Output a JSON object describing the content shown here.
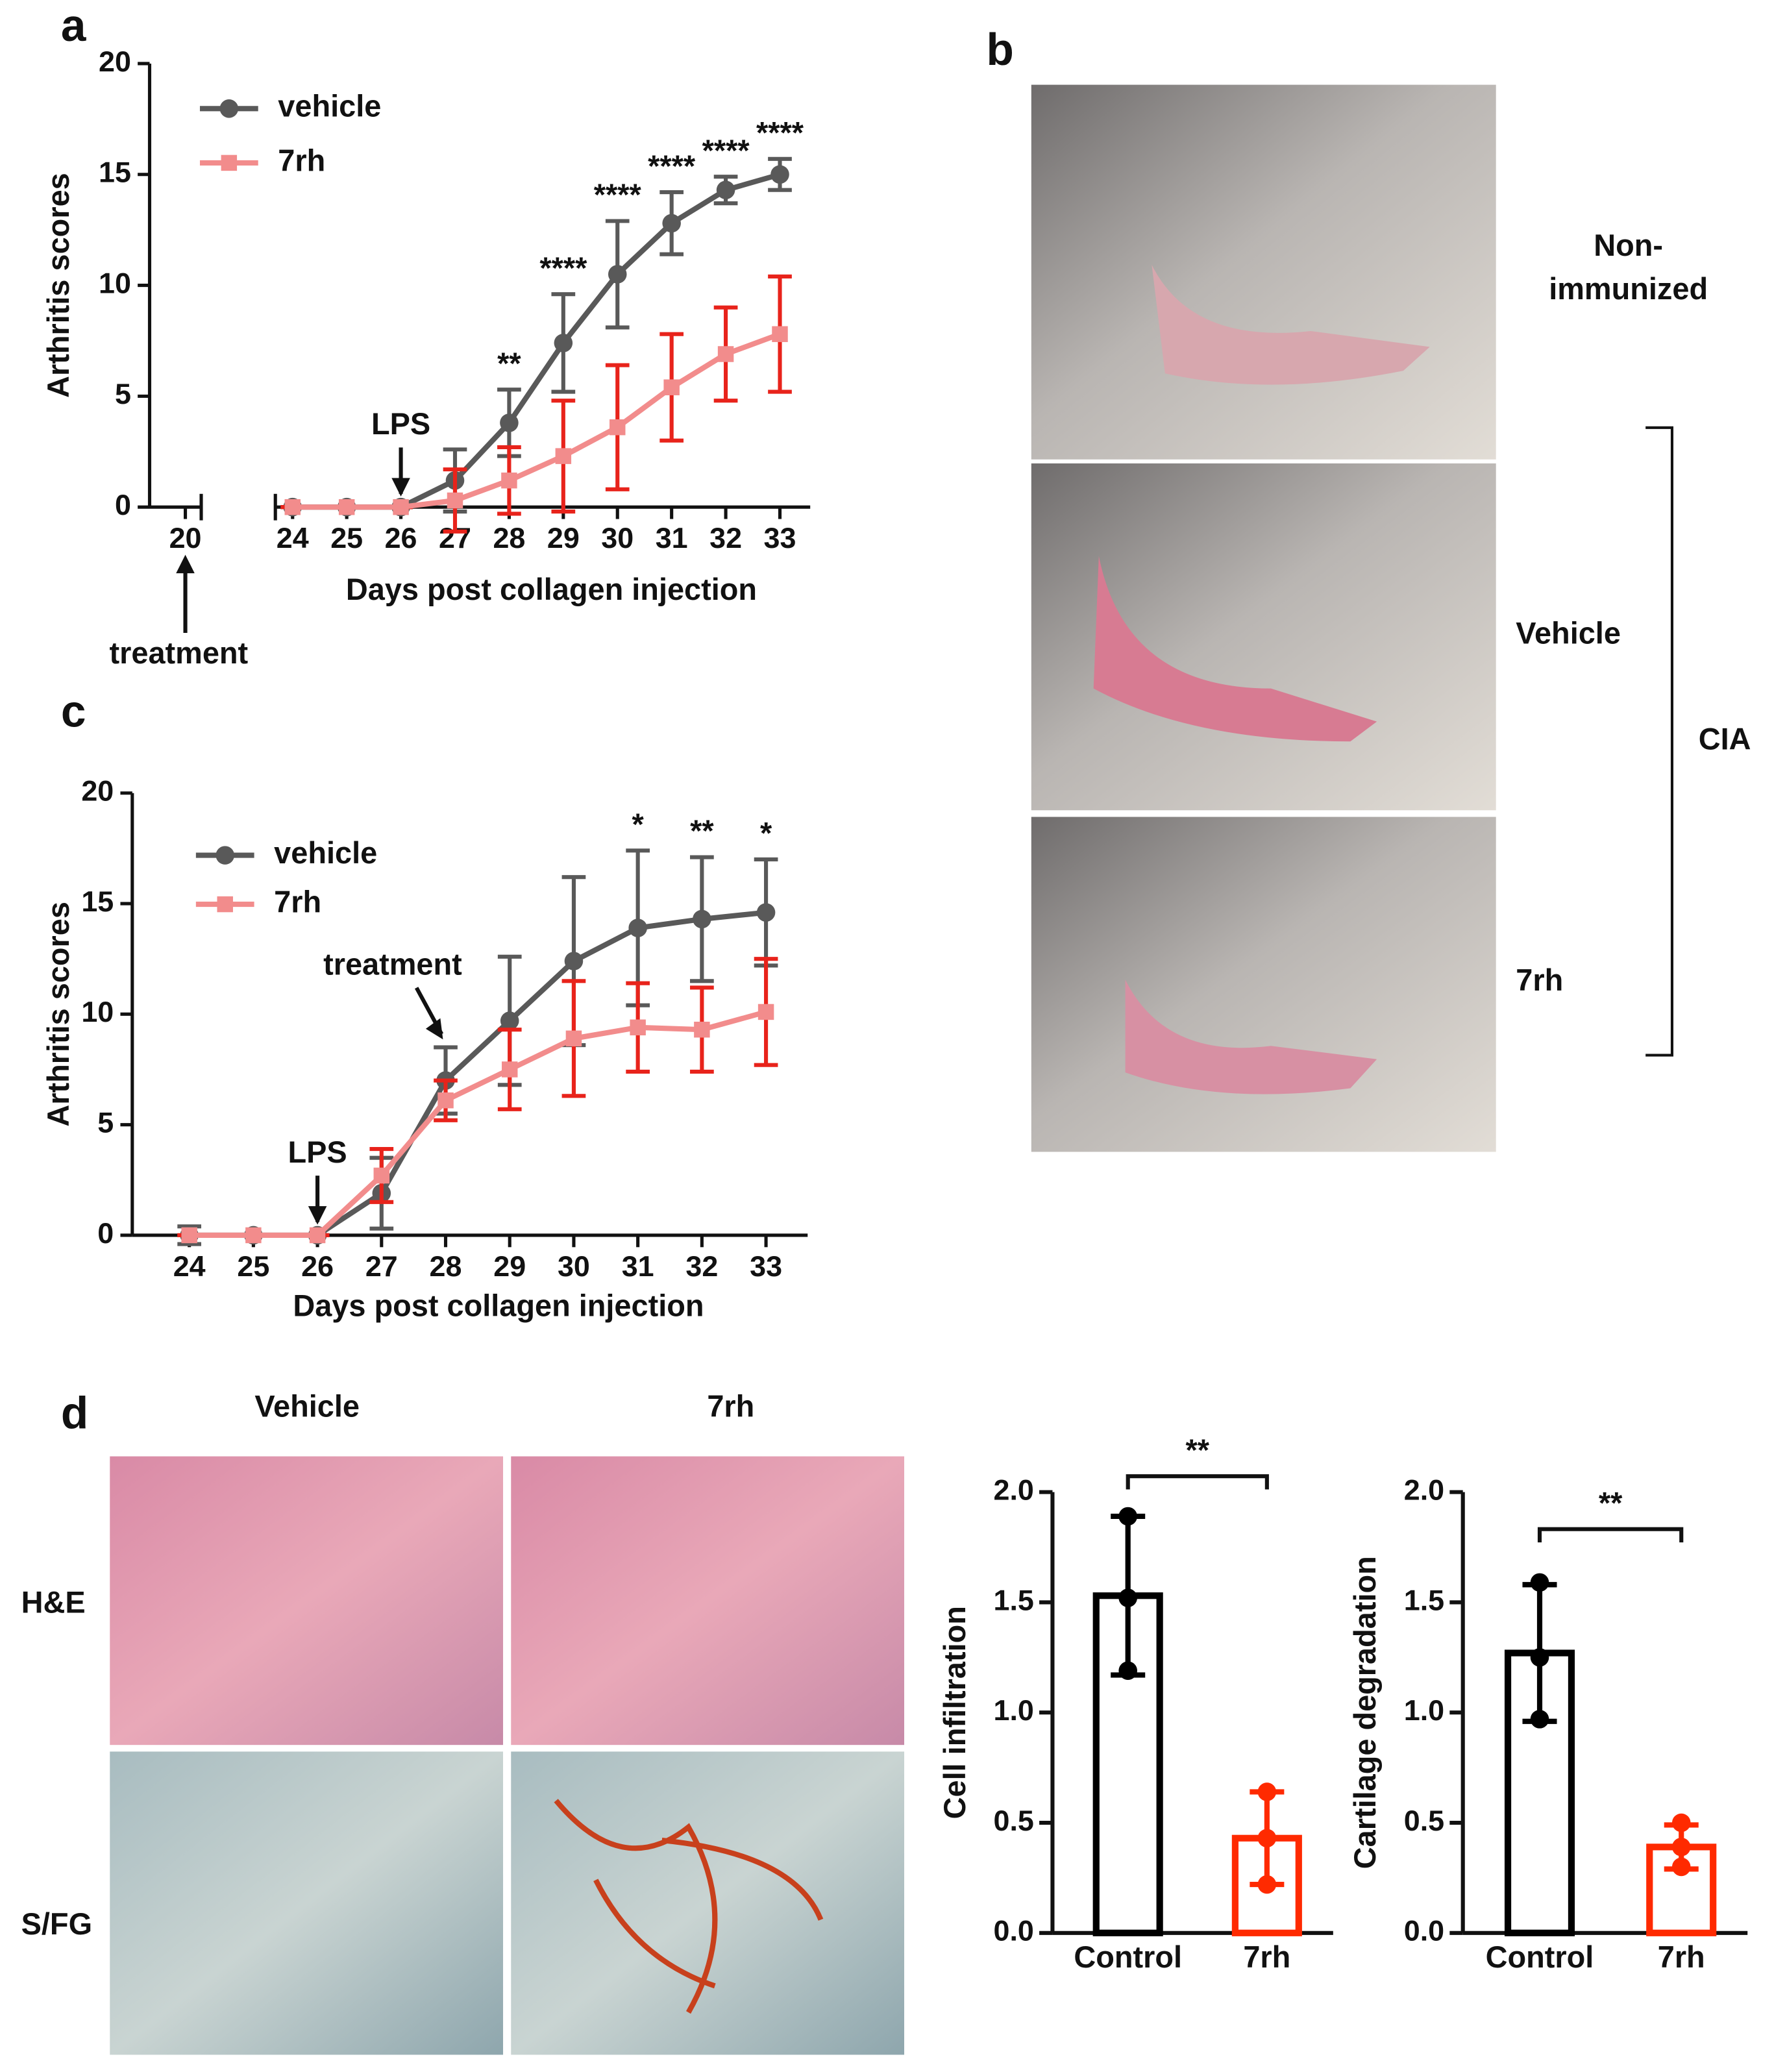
{
  "panel_labels": [
    "a",
    "b",
    "c",
    "d"
  ],
  "photos_b": {
    "non_immunized": [
      "Non-",
      "immunized"
    ],
    "vehicle": "Vehicle",
    "treated": "7rh",
    "group": "CIA"
  },
  "histology_d": {
    "columns": [
      "Vehicle",
      "7rh"
    ],
    "rows": [
      "H&E",
      "S/FG"
    ]
  },
  "chart_data": [
    {
      "type": "line",
      "xlabel": "Days post collagen injection",
      "ylabel": "Arthritis scores",
      "x": [
        24,
        25,
        26,
        27,
        28,
        29,
        30,
        31,
        32,
        33
      ],
      "xlim": [
        19.34,
        33.56
      ],
      "xticks": [
        20,
        24,
        25,
        26,
        27,
        28,
        29,
        30,
        31,
        32,
        33
      ],
      "ylim": [
        0,
        20
      ],
      "yticks": [
        0,
        5,
        10,
        15,
        20
      ],
      "axis_break": true,
      "series": [
        {
          "name": "vehicle",
          "color": "#595959",
          "error_color": "#595959",
          "marker": "circle",
          "values": [
            0,
            0,
            0,
            1.2,
            3.8,
            7.4,
            10.5,
            12.8,
            14.3,
            15.0
          ],
          "errors": [
            0,
            0,
            0,
            1.4,
            1.5,
            2.2,
            2.4,
            1.4,
            0.6,
            0.7
          ]
        },
        {
          "name": "7rh",
          "color": "#f28c8c",
          "error_color": "#e8231b",
          "marker": "square",
          "values": [
            0,
            0,
            0,
            0.3,
            1.2,
            2.3,
            3.6,
            5.4,
            6.9,
            7.8
          ],
          "errors": [
            0,
            0,
            0,
            1.4,
            1.5,
            2.5,
            2.8,
            2.4,
            2.1,
            2.6
          ]
        }
      ],
      "significance": [
        {
          "x": 28,
          "label": "**"
        },
        {
          "x": 29,
          "label": "****"
        },
        {
          "x": 30,
          "label": "****"
        },
        {
          "x": 31,
          "label": "****"
        },
        {
          "x": 32,
          "label": "****"
        },
        {
          "x": 33,
          "label": "****"
        }
      ],
      "annotations": [
        {
          "x": 26,
          "label": "LPS"
        },
        {
          "x": 20,
          "label": "treatment"
        }
      ]
    },
    {
      "type": "line",
      "xlabel": "Days post collagen injection",
      "ylabel": "Arthritis scores",
      "x": [
        24,
        25,
        26,
        27,
        28,
        29,
        30,
        31,
        32,
        33
      ],
      "xlim": [
        23.11,
        33.65
      ],
      "xticks": [
        24,
        25,
        26,
        27,
        28,
        29,
        30,
        31,
        32,
        33
      ],
      "ylim": [
        0,
        20
      ],
      "yticks": [
        0,
        5,
        10,
        15,
        20
      ],
      "axis_break": false,
      "series": [
        {
          "name": "vehicle",
          "color": "#595959",
          "error_color": "#595959",
          "marker": "circle",
          "values": [
            0,
            0,
            0,
            1.9,
            7.0,
            9.7,
            12.4,
            13.9,
            14.3,
            14.6
          ],
          "errors": [
            0.4,
            0,
            0,
            1.6,
            1.5,
            2.9,
            3.8,
            3.5,
            2.8,
            2.4
          ]
        },
        {
          "name": "7rh",
          "color": "#f28c8c",
          "error_color": "#e8231b",
          "marker": "square",
          "values": [
            0,
            0,
            0,
            2.7,
            6.1,
            7.5,
            8.9,
            9.4,
            9.3,
            10.1
          ],
          "errors": [
            0,
            0,
            0,
            1.2,
            0.9,
            1.8,
            2.6,
            2.0,
            1.9,
            2.4
          ]
        }
      ],
      "significance": [
        {
          "x": 31,
          "label": "*"
        },
        {
          "x": 32,
          "label": "**"
        },
        {
          "x": 33,
          "label": "*"
        }
      ],
      "annotations": [
        {
          "x": 26,
          "label": "LPS"
        },
        {
          "x": 28,
          "label": "treatment"
        }
      ]
    },
    {
      "type": "bar",
      "ylabel": "Cell infiltration",
      "categories": [
        "Control",
        "7rh"
      ],
      "colors": [
        "#000000",
        "#ff2a00"
      ],
      "values": [
        1.53,
        0.43
      ],
      "errors": [
        0.36,
        0.21
      ],
      "points": [
        [
          1.89,
          1.52,
          1.19
        ],
        [
          0.64,
          0.43,
          0.22
        ]
      ],
      "ylim": [
        0,
        2
      ],
      "yticks": [
        {
          "value": 0,
          "label": "0.0"
        },
        {
          "value": 0.5,
          "label": "0.5"
        },
        {
          "value": 1,
          "label": "1.0"
        },
        {
          "value": 1.5,
          "label": "1.5"
        },
        {
          "value": 2,
          "label": "2.0"
        }
      ],
      "significance": "**"
    },
    {
      "type": "bar",
      "ylabel": "Cartilage degradation",
      "categories": [
        "Control",
        "7rh"
      ],
      "colors": [
        "#000000",
        "#ff2a00"
      ],
      "values": [
        1.27,
        0.39
      ],
      "errors": [
        0.31,
        0.1
      ],
      "points": [
        [
          1.59,
          1.25,
          0.97
        ],
        [
          0.5,
          0.39,
          0.3
        ]
      ],
      "ylim": [
        0,
        2
      ],
      "yticks": [
        {
          "value": 0,
          "label": "0.0"
        },
        {
          "value": 0.5,
          "label": "0.5"
        },
        {
          "value": 1,
          "label": "1.0"
        },
        {
          "value": 1.5,
          "label": "1.5"
        },
        {
          "value": 2,
          "label": "2.0"
        }
      ],
      "significance": "**"
    }
  ]
}
